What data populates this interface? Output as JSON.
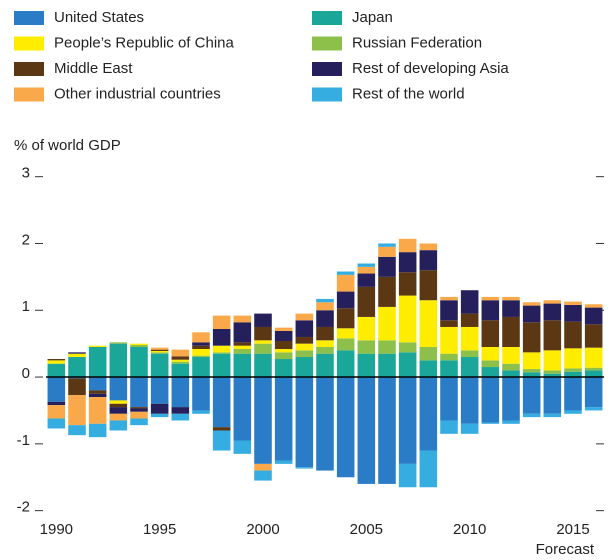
{
  "chart_data": {
    "type": "bar",
    "stacked": true,
    "y_label": "% of world GDP",
    "annotation": "Forecast",
    "categories": [
      "1990",
      null,
      null,
      null,
      null,
      "1995",
      null,
      null,
      null,
      null,
      "2000",
      null,
      null,
      null,
      null,
      "2005",
      null,
      null,
      null,
      null,
      "2010",
      null,
      null,
      null,
      null,
      "2015",
      null
    ],
    "series": [
      {
        "name": "United States",
        "color": "#2a7cc7",
        "values": [
          -0.37,
          -0.02,
          -0.2,
          -0.35,
          -0.45,
          -0.4,
          -0.45,
          -0.5,
          -0.75,
          -0.95,
          -1.3,
          -1.25,
          -1.35,
          -1.4,
          -1.5,
          -1.6,
          -1.6,
          -1.3,
          -1.1,
          -0.65,
          -0.7,
          -0.68,
          -0.65,
          -0.55,
          -0.55,
          -0.5,
          -0.45
        ]
      },
      {
        "name": "People’s Republic of China",
        "color": "#ffed00",
        "values": [
          0.05,
          0.05,
          0.02,
          -0.05,
          0.02,
          0.02,
          0.03,
          0.1,
          0.1,
          0.05,
          0.05,
          0.05,
          0.1,
          0.1,
          0.15,
          0.35,
          0.5,
          0.7,
          0.7,
          0.4,
          0.35,
          0.2,
          0.25,
          0.25,
          0.3,
          0.3,
          0.3
        ]
      },
      {
        "name": "Middle East",
        "color": "#5b3813",
        "values": [
          0.02,
          -0.25,
          -0.05,
          -0.05,
          -0.02,
          0.02,
          0.05,
          0.05,
          -0.05,
          0.05,
          0.2,
          0.12,
          0.1,
          0.2,
          0.3,
          0.45,
          0.45,
          0.35,
          0.45,
          0.1,
          0.2,
          0.4,
          0.45,
          0.45,
          0.45,
          0.4,
          0.35
        ]
      },
      {
        "name": "Other industrial countries",
        "color": "#f9a949",
        "values": [
          -0.2,
          -0.45,
          -0.4,
          -0.1,
          -0.1,
          0.03,
          0.1,
          0.15,
          0.2,
          0.1,
          -0.1,
          0.05,
          0.1,
          0.12,
          0.25,
          0.1,
          0.15,
          0.2,
          0.1,
          0.05,
          0,
          0.05,
          0.05,
          0.05,
          0.05,
          0.05,
          0.05
        ]
      },
      {
        "name": "Japan",
        "color": "#1aa698",
        "values": [
          0.2,
          0.3,
          0.45,
          0.5,
          0.45,
          0.35,
          0.2,
          0.3,
          0.35,
          0.35,
          0.35,
          0.27,
          0.3,
          0.35,
          0.4,
          0.35,
          0.35,
          0.37,
          0.25,
          0.25,
          0.3,
          0.15,
          0.1,
          0.07,
          0.05,
          0.08,
          0.1
        ]
      },
      {
        "name": "Russian Federation",
        "color": "#8cc04b",
        "values": [
          0,
          0,
          0,
          0.02,
          0.03,
          0.02,
          0.03,
          0.02,
          0.02,
          0.07,
          0.15,
          0.1,
          0.1,
          0.1,
          0.18,
          0.2,
          0.2,
          0.15,
          0.2,
          0.1,
          0.1,
          0.1,
          0.1,
          0.05,
          0.05,
          0.05,
          0.04
        ]
      },
      {
        "name": "Rest of developing Asia",
        "color": "#25205b",
        "values": [
          -0.05,
          0.02,
          -0.05,
          -0.1,
          -0.05,
          -0.15,
          -0.1,
          0.05,
          0.25,
          0.3,
          0.2,
          0.15,
          0.25,
          0.25,
          0.25,
          0.2,
          0.3,
          0.3,
          0.3,
          0.3,
          0.35,
          0.3,
          0.25,
          0.25,
          0.25,
          0.25,
          0.25
        ]
      },
      {
        "name": "Rest of the world",
        "color": "#35ade1",
        "values": [
          -0.15,
          -0.15,
          -0.2,
          -0.15,
          -0.1,
          -0.05,
          -0.1,
          -0.05,
          -0.3,
          -0.2,
          -0.15,
          -0.05,
          -0.02,
          0.05,
          0.05,
          0.05,
          0.05,
          -0.35,
          -0.55,
          -0.2,
          -0.15,
          -0.02,
          -0.05,
          -0.05,
          -0.05,
          -0.05,
          -0.05
        ]
      }
    ],
    "stack_order": [
      "Japan",
      "Russian Federation",
      "People’s Republic of China",
      "Middle East",
      "Rest of developing Asia",
      "Other industrial countries",
      "Rest of the world"
    ],
    "ylim": [
      -2.2,
      3.1
    ],
    "yticks": [
      -2,
      -1,
      0,
      1,
      2,
      3
    ],
    "legend": "top"
  }
}
